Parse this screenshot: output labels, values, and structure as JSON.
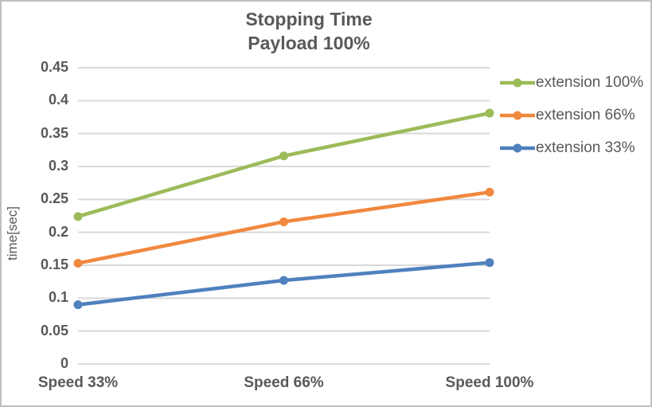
{
  "window": {
    "background": "#FFFFFF",
    "border_color": "#BFBFBF"
  },
  "chart_data": {
    "type": "line",
    "title": "Stopping Time",
    "subtitle": "Payload 100%",
    "categories": [
      "Speed 33%",
      "Speed 66%",
      "Speed 100%"
    ],
    "series": [
      {
        "name": "extension 100%",
        "color": "#9CBB59",
        "values": [
          0.224,
          0.316,
          0.381
        ]
      },
      {
        "name": "extension 66%",
        "color": "#F0883E",
        "values": [
          0.153,
          0.216,
          0.261
        ]
      },
      {
        "name": "extension 33%",
        "color": "#4E81BD",
        "values": [
          0.09,
          0.127,
          0.154
        ]
      }
    ],
    "xlabel": "",
    "ylabel": "time[sec]",
    "ylim": [
      0,
      0.45
    ],
    "ytick_step": 0.05,
    "yticks": [
      "0",
      "0.05",
      "0.1",
      "0.15",
      "0.2",
      "0.25",
      "0.3",
      "0.35",
      "0.4",
      "0.45"
    ],
    "grid": true,
    "legend_position": "right",
    "gridline_color": "#D9D9D9",
    "text_color": "#595959",
    "marker": "circle"
  }
}
